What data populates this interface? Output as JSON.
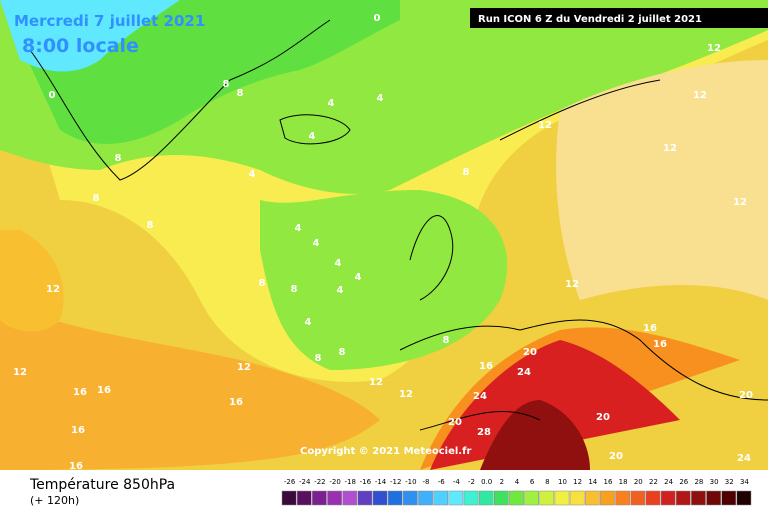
{
  "header": {
    "date": "Mercredi 7 juillet 2021",
    "time": "8:00 locale",
    "run": "Run ICON 6 Z du Vendredi 2 juillet 2021"
  },
  "copyright": "Copyright © 2021 Meteociel.fr",
  "footer": {
    "title": "Température 850hPa",
    "lead": "(+ 120h)"
  },
  "legend": {
    "labels": [
      "-26",
      "-24",
      "-22",
      "-20",
      "-18",
      "-16",
      "-14",
      "-12",
      "-10",
      "-8",
      "-6",
      "-4",
      "-2",
      "0.0",
      "2",
      "4",
      "6",
      "8",
      "10",
      "12",
      "14",
      "16",
      "18",
      "20",
      "22",
      "24",
      "26",
      "28",
      "30",
      "32",
      "34"
    ],
    "colors": [
      "#3a0a3a",
      "#5a1060",
      "#7a2090",
      "#9a30b0",
      "#b050d0",
      "#6040c0",
      "#3050d0",
      "#2070e0",
      "#3090f0",
      "#40b0f8",
      "#50d0ff",
      "#60e8ff",
      "#40f0d0",
      "#30e8a0",
      "#40e060",
      "#70e840",
      "#a0f040",
      "#d0f040",
      "#f0f040",
      "#f8e040",
      "#f8c030",
      "#f8a020",
      "#f88020",
      "#f06020",
      "#e84020",
      "#d02020",
      "#b01818",
      "#901010",
      "#700808",
      "#500000",
      "#200000"
    ]
  },
  "contour_labels": [
    "0",
    "0",
    "4",
    "4",
    "4",
    "4",
    "4",
    "4",
    "4",
    "4",
    "4",
    "4",
    "8",
    "8",
    "8",
    "8",
    "8",
    "8",
    "8",
    "8",
    "8",
    "8",
    "8",
    "12",
    "12",
    "12",
    "12",
    "12",
    "12",
    "12",
    "12",
    "12",
    "12",
    "12",
    "16",
    "16",
    "16",
    "16",
    "16",
    "16",
    "16",
    "16",
    "20",
    "20",
    "20",
    "20",
    "20",
    "24",
    "24",
    "24",
    "28"
  ]
}
